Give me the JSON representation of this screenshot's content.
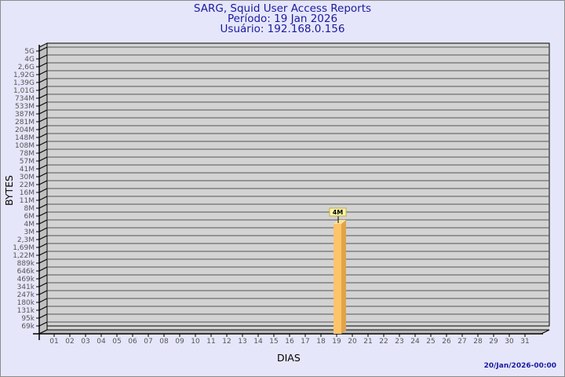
{
  "header": {
    "title": "SARG, Squid User Access Reports",
    "period": "Período: 19 Jan 2026",
    "user": "Usuário: 192.168.0.156"
  },
  "footer": {
    "timestamp": "20/Jan/2026-00:00"
  },
  "chart_data": {
    "type": "bar",
    "title": "SARG, Squid User Access Reports",
    "xlabel": "DIAS",
    "ylabel": "BYTES",
    "y_scale": "log",
    "grid": true,
    "categories": [
      "01",
      "02",
      "03",
      "04",
      "05",
      "06",
      "07",
      "08",
      "09",
      "10",
      "11",
      "12",
      "13",
      "14",
      "15",
      "16",
      "17",
      "18",
      "19",
      "20",
      "21",
      "22",
      "23",
      "24",
      "25",
      "26",
      "27",
      "28",
      "29",
      "30",
      "31"
    ],
    "series": [
      {
        "values": [
          null,
          null,
          null,
          null,
          null,
          null,
          null,
          null,
          null,
          null,
          null,
          null,
          null,
          null,
          null,
          null,
          null,
          null,
          "4M",
          null,
          null,
          null,
          null,
          null,
          null,
          null,
          null,
          null,
          null,
          null,
          null
        ]
      }
    ],
    "y_ticks": [
      "5G",
      "4G",
      "2,6G",
      "1,92G",
      "1,39G",
      "1,01G",
      "734M",
      "533M",
      "387M",
      "281M",
      "204M",
      "148M",
      "108M",
      "78M",
      "57M",
      "41M",
      "30M",
      "22M",
      "16M",
      "11M",
      "8M",
      "6M",
      "4M",
      "3M",
      "2,3M",
      "1,69M",
      "1,22M",
      "889k",
      "646k",
      "469k",
      "341k",
      "247k",
      "180k",
      "131k",
      "95k",
      "69k"
    ],
    "data_labels": [
      {
        "category": "19",
        "label": "4M"
      }
    ],
    "colors": {
      "bar_front": "#fdc46a",
      "bar_side": "#e0a448",
      "bar_top": "#fee39a",
      "plot_bg": "#d3d3d3",
      "label_bg": "#f8f4b0"
    }
  }
}
